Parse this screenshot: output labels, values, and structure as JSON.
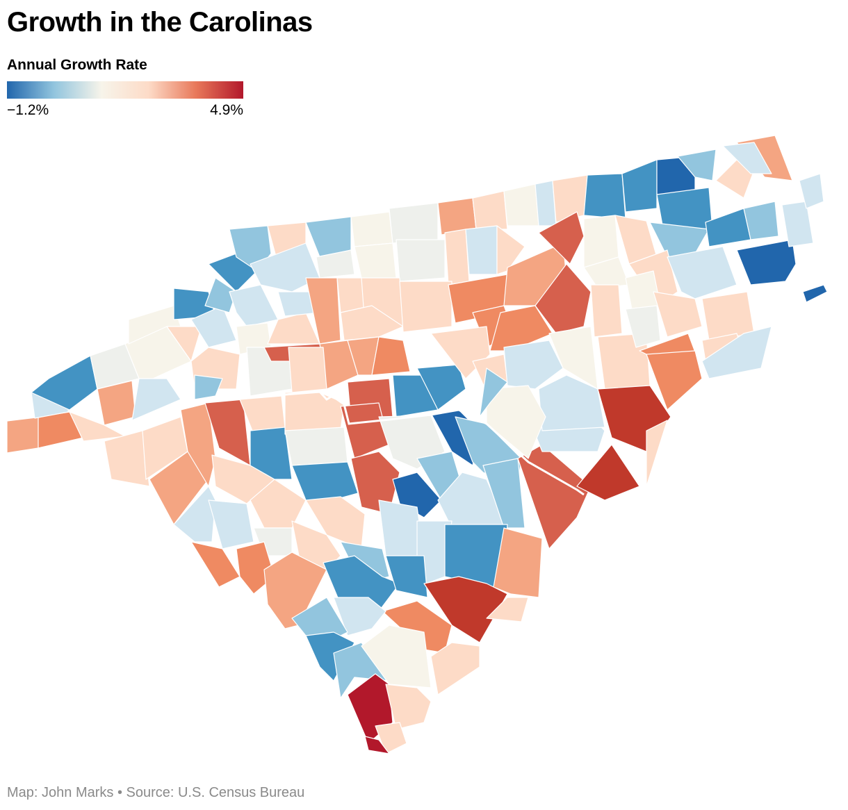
{
  "title": "Growth in the Carolinas",
  "legend": {
    "title": "Annual Growth Rate",
    "min_label": "−1.2%",
    "max_label": "4.9%",
    "min_value": -1.2,
    "max_value": 4.9,
    "colors": [
      "#2166ac",
      "#92c5de",
      "#f7f4ea",
      "#fddbc7",
      "#e8785a",
      "#b2182b"
    ]
  },
  "footer": "Map: John Marks • Source: U.S. Census Bureau",
  "map": {
    "regions": [
      "North Carolina",
      "South Carolina"
    ],
    "unit": "county",
    "color_scale": "diverging blue-white-red"
  }
}
